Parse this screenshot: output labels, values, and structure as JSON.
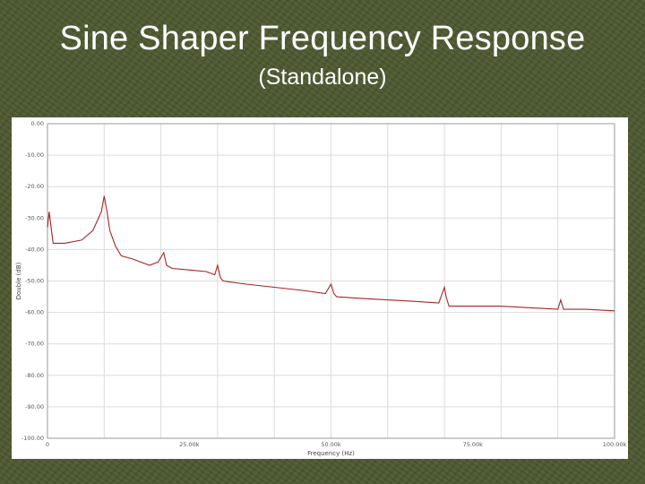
{
  "slide": {
    "title": "Sine Shaper Frequency Response",
    "subtitle": "(Standalone)"
  },
  "colors": {
    "background": "#4e5a31",
    "series": "#a62424",
    "plot_background": "#ffffff",
    "grid": "#dcdcdc"
  },
  "chart_data": {
    "type": "line",
    "title": "Sine Shaper Frequency Response",
    "subtitle": "(Standalone)",
    "xlabel": "Frequency (Hz)",
    "ylabel": "Double (dB)",
    "xlim": [
      0,
      100000
    ],
    "ylim": [
      -100,
      0
    ],
    "x_ticks": [
      0,
      25000,
      50000,
      75000,
      100000
    ],
    "x_tick_labels": [
      "0",
      "25.00k",
      "50.00k",
      "75.00k",
      "100.00k"
    ],
    "y_ticks": [
      0,
      -10,
      -20,
      -30,
      -40,
      -50,
      -60,
      -70,
      -80,
      -90,
      -100
    ],
    "y_tick_labels": [
      "0.00",
      "-10.00",
      "-20.00",
      "-30.00",
      "-40.00",
      "-50.00",
      "-60.00",
      "-70.00",
      "-80.00",
      "-90.00",
      "-100.00"
    ],
    "grid": true,
    "legend": "none",
    "series": [
      {
        "x": [
          0,
          300,
          1000,
          3000,
          6000,
          8000,
          9500,
          10000,
          10500,
          11000,
          12000,
          13000,
          15000,
          18000,
          19500,
          20500,
          21000,
          22000,
          25000,
          28000,
          29500,
          30000,
          30500,
          31000,
          35000,
          40000,
          45000,
          49000,
          50000,
          50500,
          51000,
          55000,
          60000,
          65000,
          69000,
          70000,
          70300,
          70800,
          71000,
          75000,
          80000,
          85000,
          90000,
          90500,
          91000,
          95000,
          100000
        ],
        "y": [
          -33,
          -28,
          -38,
          -38,
          -37,
          -34,
          -28,
          -23,
          -28,
          -34,
          -39,
          -42,
          -43,
          -45,
          -44,
          -41,
          -45,
          -46,
          -46.5,
          -47,
          -48,
          -45,
          -49,
          -50,
          -51,
          -52,
          -53,
          -54,
          -51,
          -54,
          -55,
          -55.5,
          -56,
          -56.5,
          -57,
          -52,
          -55,
          -58,
          -58,
          -58,
          -58,
          -58.5,
          -59,
          -56,
          -59,
          -59,
          -59.5
        ]
      }
    ]
  }
}
